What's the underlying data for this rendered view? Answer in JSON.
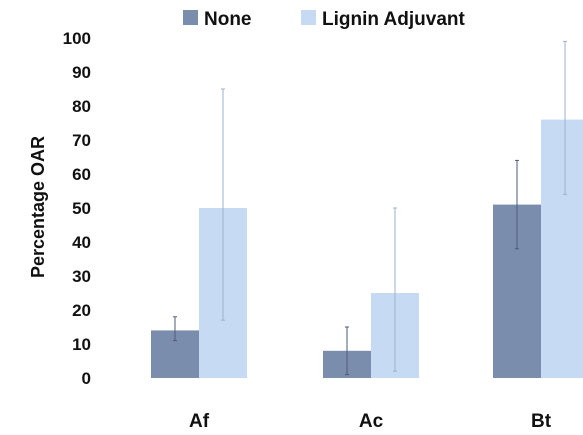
{
  "chart_data": {
    "type": "bar",
    "title": "",
    "xlabel": "",
    "ylabel": "Percentage OAR",
    "ylim": [
      0,
      100
    ],
    "yticks": [
      0,
      10,
      20,
      30,
      40,
      50,
      60,
      70,
      80,
      90,
      100
    ],
    "categories": [
      "Af",
      "Ac",
      "Bt"
    ],
    "series": [
      {
        "name": "None",
        "color": "#7b8dac",
        "values": [
          14,
          8,
          51
        ],
        "error_low": [
          11,
          1,
          38
        ],
        "error_high": [
          18,
          15,
          64
        ]
      },
      {
        "name": "Lignin Adjuvant",
        "color": "#c6daf3",
        "values": [
          50,
          25,
          76
        ],
        "error_low": [
          17,
          2,
          54
        ],
        "error_high": [
          85,
          50,
          99
        ]
      }
    ],
    "legend_position": "top",
    "grid": false,
    "error_bars": true
  }
}
